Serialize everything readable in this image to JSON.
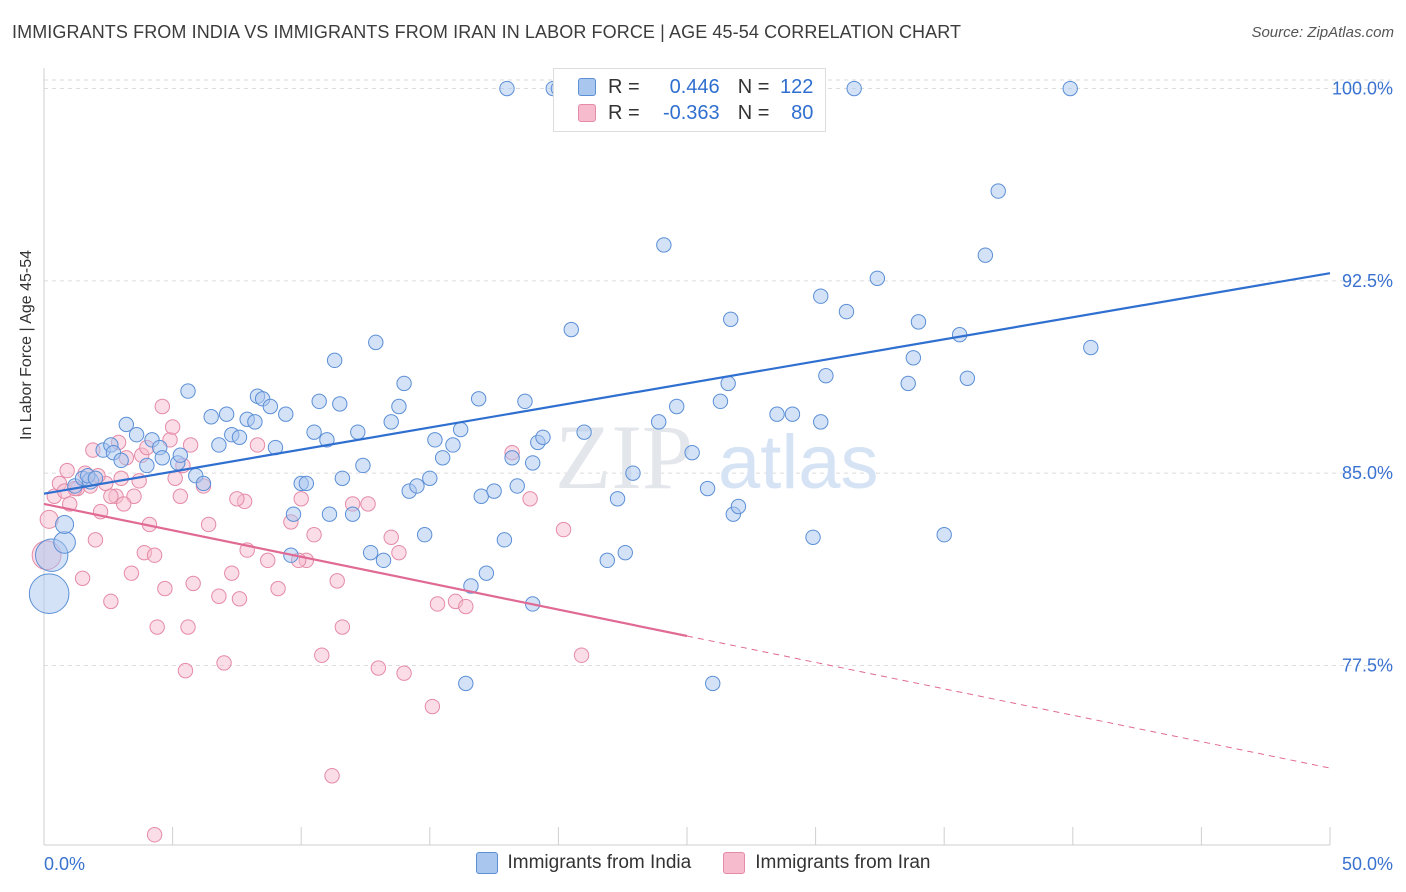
{
  "header": {
    "title": "IMMIGRANTS FROM INDIA VS IMMIGRANTS FROM IRAN IN LABOR FORCE | AGE 45-54 CORRELATION CHART",
    "source": "Source: ZipAtlas.com"
  },
  "colors": {
    "india_fill": "#a9c6ef",
    "india_stroke": "#5b8fd6",
    "india_line": "#2f6fd0",
    "iran_fill": "#f6bccd",
    "iran_stroke": "#e58aa7",
    "iran_line": "#e06a94",
    "tick_label": "#3a72d0",
    "grid": "#dcdcdc"
  },
  "legend_top": {
    "india": {
      "r_label": "R =",
      "r_value": "0.446",
      "n_label": "N =",
      "n_value": "122"
    },
    "iran": {
      "r_label": "R =",
      "r_value": "-0.363",
      "n_label": "N =",
      "n_value": "80"
    }
  },
  "watermark": {
    "zip": "ZIP",
    "atlas": "atlas"
  },
  "chart_data": {
    "type": "scatter",
    "title": "IMMIGRANTS FROM INDIA VS IMMIGRANTS FROM IRAN IN LABOR FORCE | AGE 45-54 CORRELATION CHART",
    "xlabel": "",
    "ylabel": "In Labor Force | Age 45-54",
    "xlim": [
      0,
      50
    ],
    "ylim": [
      70.5,
      100.8
    ],
    "x_tick_labels": [
      "0.0%",
      "50.0%"
    ],
    "y_ticks": [
      77.5,
      85.0,
      92.5,
      100.0
    ],
    "y_tick_labels": [
      "77.5%",
      "85.0%",
      "92.5%",
      "100.0%"
    ],
    "grid": true,
    "legend_position": "top-center",
    "series": [
      {
        "name": "Immigrants from India",
        "r": 0.446,
        "n": 122,
        "trend": {
          "x": [
            0,
            50
          ],
          "y": [
            84.2,
            92.8
          ],
          "dashed_from_x": null
        },
        "points": [
          [
            0.2,
            80.3,
            2.2
          ],
          [
            0.3,
            81.8,
            1.8
          ],
          [
            0.8,
            82.3,
            1.2
          ],
          [
            0.8,
            83.0,
            1.0
          ],
          [
            1.2,
            84.5,
            0.8
          ],
          [
            1.5,
            84.8,
            0.8
          ],
          [
            1.8,
            84.7,
            0.9
          ],
          [
            1.7,
            84.9,
            0.8
          ],
          [
            2.0,
            84.8,
            0.8
          ],
          [
            2.3,
            85.9,
            0.8
          ],
          [
            2.6,
            86.1,
            0.8
          ],
          [
            2.7,
            85.8,
            0.8
          ],
          [
            3.0,
            85.5,
            0.8
          ],
          [
            3.2,
            86.9,
            0.8
          ],
          [
            3.6,
            86.5,
            0.8
          ],
          [
            4.0,
            85.3,
            0.8
          ],
          [
            4.2,
            86.3,
            0.8
          ],
          [
            4.5,
            86.0,
            0.8
          ],
          [
            4.6,
            85.6,
            0.8
          ],
          [
            5.2,
            85.4,
            0.8
          ],
          [
            5.3,
            85.7,
            0.8
          ],
          [
            5.6,
            88.2,
            0.8
          ],
          [
            5.9,
            84.9,
            0.8
          ],
          [
            6.2,
            84.6,
            0.8
          ],
          [
            6.5,
            87.2,
            0.8
          ],
          [
            6.8,
            86.1,
            0.8
          ],
          [
            7.1,
            87.3,
            0.8
          ],
          [
            7.3,
            86.5,
            0.8
          ],
          [
            7.6,
            86.4,
            0.8
          ],
          [
            7.9,
            87.1,
            0.8
          ],
          [
            8.2,
            87.0,
            0.8
          ],
          [
            8.3,
            88.0,
            0.8
          ],
          [
            8.5,
            87.9,
            0.8
          ],
          [
            8.8,
            87.6,
            0.8
          ],
          [
            9.0,
            86.0,
            0.8
          ],
          [
            9.4,
            87.3,
            0.8
          ],
          [
            9.6,
            81.8,
            0.8
          ],
          [
            9.7,
            83.4,
            0.8
          ],
          [
            10.0,
            84.6,
            0.8
          ],
          [
            10.2,
            84.6,
            0.8
          ],
          [
            10.5,
            86.6,
            0.8
          ],
          [
            10.7,
            87.8,
            0.8
          ],
          [
            11.0,
            86.3,
            0.8
          ],
          [
            11.1,
            83.4,
            0.8
          ],
          [
            11.3,
            89.4,
            0.8
          ],
          [
            11.5,
            87.7,
            0.8
          ],
          [
            11.6,
            84.8,
            0.8
          ],
          [
            12.0,
            83.4,
            0.8
          ],
          [
            12.2,
            86.6,
            0.8
          ],
          [
            12.4,
            85.3,
            0.8
          ],
          [
            12.7,
            81.9,
            0.8
          ],
          [
            12.9,
            90.1,
            0.8
          ],
          [
            13.2,
            81.6,
            0.8
          ],
          [
            13.5,
            87.0,
            0.8
          ],
          [
            13.8,
            87.6,
            0.8
          ],
          [
            14.0,
            88.5,
            0.8
          ],
          [
            14.2,
            84.3,
            0.8
          ],
          [
            14.5,
            84.5,
            0.8
          ],
          [
            14.8,
            82.6,
            0.8
          ],
          [
            15.0,
            84.8,
            0.8
          ],
          [
            15.2,
            86.3,
            0.8
          ],
          [
            15.5,
            85.6,
            0.8
          ],
          [
            15.9,
            86.1,
            0.8
          ],
          [
            16.2,
            86.7,
            0.8
          ],
          [
            16.6,
            80.6,
            0.8
          ],
          [
            16.9,
            87.9,
            0.8
          ],
          [
            17.0,
            84.1,
            0.8
          ],
          [
            17.2,
            81.1,
            0.8
          ],
          [
            17.5,
            84.3,
            0.8
          ],
          [
            17.9,
            82.4,
            0.8
          ],
          [
            18.0,
            100.0,
            0.8
          ],
          [
            18.2,
            85.6,
            0.8
          ],
          [
            18.4,
            84.5,
            0.8
          ],
          [
            18.7,
            87.8,
            0.8
          ],
          [
            19.0,
            85.4,
            0.8
          ],
          [
            19.2,
            86.2,
            0.8
          ],
          [
            19.4,
            86.4,
            0.8
          ],
          [
            19.0,
            79.9,
            0.8
          ],
          [
            19.8,
            100.0,
            0.8
          ],
          [
            20.1,
            100.0,
            0.8
          ],
          [
            20.5,
            90.6,
            0.8
          ],
          [
            21.0,
            86.6,
            0.8
          ],
          [
            21.9,
            81.6,
            0.8
          ],
          [
            22.3,
            84.0,
            0.8
          ],
          [
            22.6,
            81.9,
            0.8
          ],
          [
            22.9,
            85.0,
            0.8
          ],
          [
            23.9,
            87.0,
            0.8
          ],
          [
            24.1,
            93.9,
            0.8
          ],
          [
            24.6,
            87.6,
            0.8
          ],
          [
            25.2,
            85.8,
            0.8
          ],
          [
            25.8,
            84.4,
            0.8
          ],
          [
            26.3,
            87.8,
            0.8
          ],
          [
            26.6,
            88.5,
            0.8
          ],
          [
            26.7,
            91.0,
            0.8
          ],
          [
            26.8,
            83.4,
            0.8
          ],
          [
            27.0,
            83.7,
            0.8
          ],
          [
            26.0,
            76.8,
            0.8
          ],
          [
            16.4,
            76.8,
            0.8
          ],
          [
            28.5,
            87.3,
            0.8
          ],
          [
            29.1,
            87.3,
            0.8
          ],
          [
            30.2,
            87.0,
            0.8
          ],
          [
            30.2,
            91.9,
            0.8
          ],
          [
            29.9,
            82.5,
            0.8
          ],
          [
            30.4,
            88.8,
            0.8
          ],
          [
            31.2,
            91.3,
            0.8
          ],
          [
            31.5,
            100.0,
            0.8
          ],
          [
            32.4,
            92.6,
            0.8
          ],
          [
            33.6,
            88.5,
            0.8
          ],
          [
            33.8,
            89.5,
            0.8
          ],
          [
            34.0,
            90.9,
            0.8
          ],
          [
            35.0,
            82.6,
            0.8
          ],
          [
            35.6,
            90.4,
            0.8
          ],
          [
            35.9,
            88.7,
            0.8
          ],
          [
            36.6,
            93.5,
            0.8
          ],
          [
            37.1,
            96.0,
            0.8
          ],
          [
            39.9,
            100.0,
            0.8
          ],
          [
            40.7,
            89.9,
            0.8
          ],
          [
            20.0,
            100.0,
            0.8
          ]
        ]
      },
      {
        "name": "Immigrants from Iran",
        "r": -0.363,
        "n": 80,
        "trend": {
          "x": [
            0,
            50
          ],
          "y": [
            83.8,
            73.5
          ],
          "dashed_from_x": 25
        },
        "points": [
          [
            0.1,
            81.8,
            1.6
          ],
          [
            0.2,
            83.2,
            1.0
          ],
          [
            0.4,
            84.1,
            0.8
          ],
          [
            0.6,
            84.6,
            0.8
          ],
          [
            0.8,
            84.3,
            0.8
          ],
          [
            1.0,
            83.8,
            0.8
          ],
          [
            1.3,
            84.4,
            0.8
          ],
          [
            1.5,
            80.9,
            0.8
          ],
          [
            1.6,
            85.0,
            0.8
          ],
          [
            1.8,
            84.5,
            0.8
          ],
          [
            1.9,
            85.9,
            0.8
          ],
          [
            2.0,
            82.4,
            0.8
          ],
          [
            2.2,
            83.5,
            0.8
          ],
          [
            2.4,
            84.6,
            0.8
          ],
          [
            2.6,
            80.0,
            0.8
          ],
          [
            2.8,
            84.1,
            0.8
          ],
          [
            2.9,
            86.2,
            0.8
          ],
          [
            3.0,
            84.8,
            0.8
          ],
          [
            3.2,
            85.6,
            0.8
          ],
          [
            3.4,
            81.1,
            0.8
          ],
          [
            3.5,
            84.1,
            0.8
          ],
          [
            3.7,
            84.7,
            0.8
          ],
          [
            3.8,
            85.7,
            0.8
          ],
          [
            3.9,
            81.9,
            0.8
          ],
          [
            4.0,
            86.0,
            0.8
          ],
          [
            4.1,
            83.0,
            0.8
          ],
          [
            4.3,
            81.8,
            0.8
          ],
          [
            4.4,
            79.0,
            0.8
          ],
          [
            4.6,
            87.6,
            0.8
          ],
          [
            4.7,
            80.5,
            0.8
          ],
          [
            4.9,
            86.3,
            0.8
          ],
          [
            5.0,
            86.8,
            0.8
          ],
          [
            5.1,
            84.8,
            0.8
          ],
          [
            5.3,
            84.1,
            0.8
          ],
          [
            5.5,
            77.3,
            0.8
          ],
          [
            5.6,
            79.0,
            0.8
          ],
          [
            5.7,
            86.1,
            0.8
          ],
          [
            5.8,
            80.7,
            0.8
          ],
          [
            6.4,
            83.0,
            0.8
          ],
          [
            6.8,
            80.2,
            0.8
          ],
          [
            7.0,
            77.6,
            0.8
          ],
          [
            7.3,
            81.1,
            0.8
          ],
          [
            7.6,
            80.1,
            0.8
          ],
          [
            7.8,
            83.9,
            0.8
          ],
          [
            7.9,
            82.0,
            0.8
          ],
          [
            8.3,
            86.1,
            0.8
          ],
          [
            8.7,
            81.6,
            0.8
          ],
          [
            9.1,
            80.5,
            0.8
          ],
          [
            9.6,
            83.1,
            0.8
          ],
          [
            10.0,
            84.0,
            0.8
          ],
          [
            10.2,
            81.6,
            0.8
          ],
          [
            10.5,
            82.6,
            0.8
          ],
          [
            10.8,
            77.9,
            0.8
          ],
          [
            11.2,
            73.2,
            0.8
          ],
          [
            11.6,
            79.0,
            0.8
          ],
          [
            12.0,
            83.8,
            0.8
          ],
          [
            12.6,
            83.8,
            0.8
          ],
          [
            13.0,
            77.4,
            0.8
          ],
          [
            13.5,
            82.5,
            0.8
          ],
          [
            13.8,
            81.9,
            0.8
          ],
          [
            15.1,
            75.9,
            0.8
          ],
          [
            15.3,
            79.9,
            0.8
          ],
          [
            16.0,
            80.0,
            0.8
          ],
          [
            16.4,
            79.8,
            0.8
          ],
          [
            18.2,
            85.8,
            0.8
          ],
          [
            18.9,
            84.0,
            0.8
          ],
          [
            20.2,
            82.8,
            0.8
          ],
          [
            20.9,
            77.9,
            0.8
          ],
          [
            4.3,
            70.9,
            0.8
          ],
          [
            2.6,
            84.1,
            0.8
          ],
          [
            1.2,
            84.4,
            0.8
          ],
          [
            3.1,
            83.8,
            0.8
          ],
          [
            2.1,
            84.9,
            0.8
          ],
          [
            0.9,
            85.1,
            0.8
          ],
          [
            5.4,
            85.3,
            0.8
          ],
          [
            6.2,
            84.5,
            0.8
          ],
          [
            7.5,
            84.0,
            0.8
          ],
          [
            9.9,
            81.6,
            0.8
          ],
          [
            11.4,
            80.8,
            0.8
          ],
          [
            14.0,
            77.2,
            0.8
          ]
        ]
      }
    ]
  },
  "bottom_legend": {
    "india": "Immigrants from India",
    "iran": "Immigrants from Iran"
  }
}
